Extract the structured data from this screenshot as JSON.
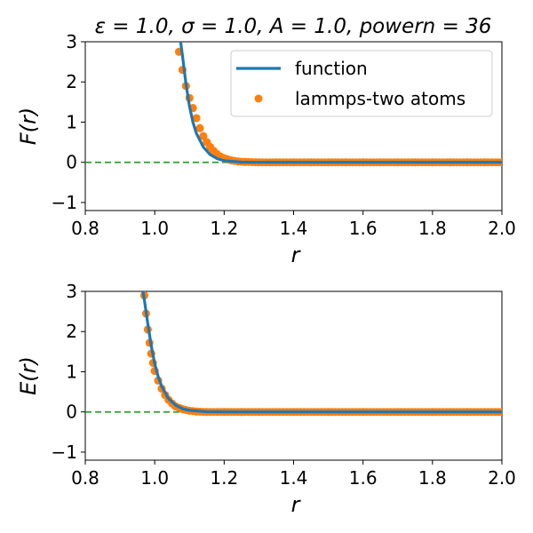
{
  "figure": {
    "title": "ε = 1.0, σ = 1.0, A = 1.0, powern = 36"
  },
  "colors": {
    "function": "#1f77b4",
    "lammps": "#ff7f0e",
    "zero_line": "#2ca02c"
  },
  "chart_data": [
    {
      "type": "line",
      "panel": "force",
      "xlabel": "r",
      "ylabel": "F(r)",
      "xlim": [
        0.8,
        2.0
      ],
      "ylim": [
        -1.2,
        3.0
      ],
      "xticks": [
        "0.8",
        "1.0",
        "1.2",
        "1.4",
        "1.6",
        "1.8",
        "2.0"
      ],
      "yticks": [
        "−1",
        "0",
        "1",
        "2",
        "3"
      ],
      "legend": {
        "position": "top-right",
        "entries": [
          "function",
          "lammps-two atoms"
        ]
      },
      "series": [
        {
          "name": "function",
          "style": "line",
          "x": [
            1.06,
            1.07,
            1.08,
            1.09,
            1.1,
            1.11,
            1.12,
            1.14,
            1.16,
            1.18,
            1.2,
            1.25,
            1.3,
            1.4,
            1.6,
            1.8,
            2.0
          ],
          "y": [
            3.82,
            3.3,
            2.65,
            1.95,
            1.4,
            1.0,
            0.72,
            0.38,
            0.19,
            0.09,
            0.04,
            0.005,
            0.0,
            0.0,
            0.0,
            0.0,
            0.0
          ]
        },
        {
          "name": "lammps-two atoms",
          "style": "scatter",
          "x": [
            1.07,
            1.08,
            1.09,
            1.1,
            1.11,
            1.12,
            1.13,
            1.14,
            1.15,
            1.16,
            1.17,
            1.18,
            1.19,
            1.2,
            1.22,
            1.24,
            1.26,
            1.3,
            1.35,
            1.4,
            1.45,
            1.5,
            1.55,
            1.6,
            1.65,
            1.7,
            1.75,
            1.8,
            1.85,
            1.9,
            1.95,
            2.0
          ],
          "y": [
            2.75,
            2.3,
            1.9,
            1.6,
            1.35,
            1.1,
            0.85,
            0.65,
            0.5,
            0.38,
            0.28,
            0.2,
            0.14,
            0.1,
            0.05,
            0.02,
            0.01,
            0.0,
            0.0,
            0.0,
            0.0,
            0.0,
            0.0,
            0.0,
            0.0,
            0.0,
            0.0,
            0.0,
            0.0,
            0.0,
            0.0,
            0.0
          ]
        }
      ],
      "reference_line": {
        "y": 0,
        "style": "dashed"
      }
    },
    {
      "type": "line",
      "panel": "energy",
      "xlabel": "r",
      "ylabel": "E(r)",
      "xlim": [
        0.8,
        2.0
      ],
      "ylim": [
        -1.2,
        3.0
      ],
      "xticks": [
        "0.8",
        "1.0",
        "1.2",
        "1.4",
        "1.6",
        "1.8",
        "2.0"
      ],
      "yticks": [
        "−1",
        "0",
        "1",
        "2",
        "3"
      ],
      "series": [
        {
          "name": "function",
          "style": "line",
          "x": [
            0.96,
            0.97,
            0.98,
            0.99,
            1.0,
            1.01,
            1.02,
            1.04,
            1.06,
            1.08,
            1.1,
            1.15,
            1.2,
            1.4,
            1.6,
            1.8,
            2.0
          ],
          "y": [
            3.3,
            2.8,
            2.2,
            1.65,
            1.2,
            0.88,
            0.64,
            0.33,
            0.17,
            0.08,
            0.04,
            0.005,
            0.0,
            0.0,
            0.0,
            0.0,
            0.0
          ]
        },
        {
          "name": "lammps-two atoms",
          "style": "scatter",
          "x": [
            0.97,
            0.975,
            0.98,
            0.985,
            0.99,
            0.995,
            1.0,
            1.01,
            1.02,
            1.03,
            1.04,
            1.05,
            1.06,
            1.08,
            1.1,
            1.12,
            1.15,
            1.2,
            1.25,
            1.3,
            1.4,
            1.5,
            1.6,
            1.7,
            1.8,
            1.9,
            2.0
          ],
          "y": [
            2.9,
            2.45,
            2.05,
            1.72,
            1.45,
            1.22,
            1.02,
            0.78,
            0.58,
            0.42,
            0.3,
            0.21,
            0.14,
            0.07,
            0.03,
            0.01,
            0.0,
            0.0,
            0.0,
            0.0,
            0.0,
            0.0,
            0.0,
            0.0,
            0.0,
            0.0,
            0.0
          ]
        }
      ],
      "reference_line": {
        "y": 0,
        "style": "dashed"
      }
    }
  ]
}
